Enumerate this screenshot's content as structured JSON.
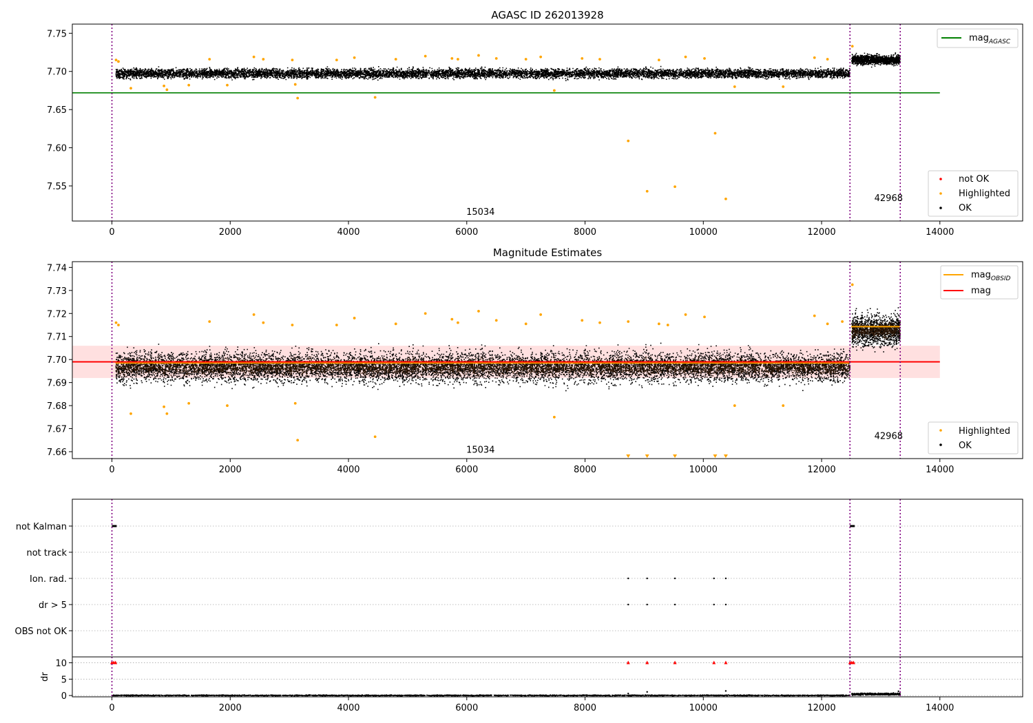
{
  "chart_data": [
    {
      "type": "scatter",
      "title": "AGASC ID 262013928",
      "xlabel": "",
      "ylabel": "",
      "xlim": [
        -670,
        15400
      ],
      "ylim": [
        7.504,
        7.762
      ],
      "xticks": [
        0,
        2000,
        4000,
        6000,
        8000,
        10000,
        12000,
        14000
      ],
      "xtick_labels": [
        "0",
        "2000",
        "4000",
        "6000",
        "8000",
        "10000",
        "12000",
        "14000"
      ],
      "yticks": [
        7.55,
        7.6,
        7.65,
        7.7,
        7.75
      ],
      "ytick_labels": [
        "7.55",
        "7.60",
        "7.65",
        "7.70",
        "7.75"
      ],
      "obsid_boundaries": [
        0,
        12480,
        13330
      ],
      "obsid_labels": [
        {
          "x": 6000,
          "y": 7.512,
          "text": "15034"
        },
        {
          "x": 12900,
          "y": 7.53,
          "text": "42968"
        }
      ],
      "ok_bands": [
        {
          "name": "OK",
          "x_start": 60,
          "x_end": 12470,
          "y_center": 7.698,
          "y_spread": 0.008
        },
        {
          "name": "OK",
          "x_start": 12500,
          "x_end": 13320,
          "y_center": 7.716,
          "y_spread": 0.008
        }
      ],
      "highlighted_points": [
        [
          70,
          7.715
        ],
        [
          110,
          7.713
        ],
        [
          320,
          7.678
        ],
        [
          880,
          7.681
        ],
        [
          930,
          7.676
        ],
        [
          1300,
          7.682
        ],
        [
          1650,
          7.716
        ],
        [
          1950,
          7.682
        ],
        [
          2400,
          7.719
        ],
        [
          2560,
          7.716
        ],
        [
          3050,
          7.715
        ],
        [
          3100,
          7.683
        ],
        [
          3140,
          7.665
        ],
        [
          3800,
          7.715
        ],
        [
          4100,
          7.718
        ],
        [
          4450,
          7.666
        ],
        [
          4800,
          7.716
        ],
        [
          5300,
          7.72
        ],
        [
          5750,
          7.717
        ],
        [
          5850,
          7.716
        ],
        [
          6200,
          7.721
        ],
        [
          6500,
          7.717
        ],
        [
          7000,
          7.716
        ],
        [
          7250,
          7.719
        ],
        [
          7480,
          7.675
        ],
        [
          7950,
          7.717
        ],
        [
          8250,
          7.716
        ],
        [
          8730,
          7.609
        ],
        [
          9050,
          7.543
        ],
        [
          9250,
          7.715
        ],
        [
          9520,
          7.549
        ],
        [
          9700,
          7.719
        ],
        [
          10020,
          7.717
        ],
        [
          10200,
          7.619
        ],
        [
          10380,
          7.533
        ],
        [
          10530,
          7.68
        ],
        [
          11350,
          7.68
        ],
        [
          11880,
          7.718
        ],
        [
          12100,
          7.716
        ],
        [
          12520,
          7.733
        ]
      ],
      "not_ok_points": [],
      "lines": [
        {
          "name": "mag_AGASC",
          "color": "#008000",
          "x": [
            -670,
            14000
          ],
          "y": [
            7.672,
            7.672
          ]
        }
      ],
      "legends": [
        {
          "placement": "top-right",
          "entries": [
            {
              "label_main": "mag",
              "label_sub": "AGASC",
              "kind": "line",
              "color": "#008000"
            }
          ]
        },
        {
          "placement": "lower-right",
          "entries": [
            {
              "label": "not OK",
              "kind": "dot",
              "color": "#ff0000"
            },
            {
              "label": "Highlighted",
              "kind": "dot",
              "color": "#ffa500"
            },
            {
              "label": "OK",
              "kind": "dot",
              "color": "#000000"
            }
          ]
        }
      ]
    },
    {
      "type": "scatter",
      "title": "Magnitude Estimates",
      "xlabel": "",
      "ylabel": "",
      "xlim": [
        -670,
        15400
      ],
      "ylim": [
        7.657,
        7.7425
      ],
      "xticks": [
        0,
        2000,
        4000,
        6000,
        8000,
        10000,
        12000,
        14000
      ],
      "xtick_labels": [
        "0",
        "2000",
        "4000",
        "6000",
        "8000",
        "10000",
        "12000",
        "14000"
      ],
      "yticks": [
        7.66,
        7.67,
        7.68,
        7.69,
        7.7,
        7.71,
        7.72,
        7.73,
        7.74
      ],
      "ytick_labels": [
        "7.66",
        "7.67",
        "7.68",
        "7.69",
        "7.70",
        "7.71",
        "7.72",
        "7.73",
        "7.74"
      ],
      "obsid_boundaries": [
        0,
        12480,
        13330
      ],
      "obsid_labels": [
        {
          "x": 6000,
          "y": 7.6595,
          "text": "15034"
        },
        {
          "x": 12900,
          "y": 7.6655,
          "text": "42968"
        }
      ],
      "ok_bands": [
        {
          "name": "OK",
          "x_start": 60,
          "x_end": 12470,
          "y_center": 7.697,
          "y_spread": 0.009
        },
        {
          "name": "OK",
          "x_start": 12500,
          "x_end": 13320,
          "y_center": 7.713,
          "y_spread": 0.009
        }
      ],
      "dense_core_color": "#2a1505",
      "mag_band": {
        "y_low": 7.692,
        "y_high": 7.706,
        "x_start": -670,
        "x_end": 14000,
        "color": "#ff0000",
        "opacity": 0.12
      },
      "highlighted_points": [
        [
          70,
          7.716
        ],
        [
          110,
          7.715
        ],
        [
          320,
          7.6765
        ],
        [
          880,
          7.6795
        ],
        [
          930,
          7.6765
        ],
        [
          1300,
          7.681
        ],
        [
          1650,
          7.7165
        ],
        [
          1950,
          7.68
        ],
        [
          2400,
          7.7195
        ],
        [
          2560,
          7.716
        ],
        [
          3050,
          7.715
        ],
        [
          3100,
          7.681
        ],
        [
          3140,
          7.665
        ],
        [
          3800,
          7.715
        ],
        [
          4100,
          7.718
        ],
        [
          4450,
          7.6665
        ],
        [
          4800,
          7.7155
        ],
        [
          5300,
          7.72
        ],
        [
          5750,
          7.7175
        ],
        [
          5850,
          7.716
        ],
        [
          6200,
          7.721
        ],
        [
          6500,
          7.717
        ],
        [
          7000,
          7.7155
        ],
        [
          7250,
          7.7195
        ],
        [
          7480,
          7.675
        ],
        [
          7950,
          7.717
        ],
        [
          8250,
          7.716
        ],
        [
          8730,
          7.7165
        ],
        [
          9250,
          7.7155
        ],
        [
          9400,
          7.715
        ],
        [
          9700,
          7.7195
        ],
        [
          10020,
          7.7185
        ],
        [
          10530,
          7.68
        ],
        [
          11350,
          7.68
        ],
        [
          11880,
          7.719
        ],
        [
          12100,
          7.7155
        ],
        [
          12350,
          7.7165
        ],
        [
          12520,
          7.7325
        ]
      ],
      "offscale_markers": [
        8730,
        9050,
        9520,
        10200,
        10380
      ],
      "lines": [
        {
          "name": "mag_OBSID",
          "color": "#ffa500",
          "segments": [
            {
              "x": [
                60,
                12470
              ],
              "y": [
                7.6985,
                7.6985
              ]
            },
            {
              "x": [
                12500,
                13320
              ],
              "y": [
                7.7143,
                7.7143
              ]
            }
          ]
        },
        {
          "name": "mag",
          "color": "#ff0000",
          "segments": [
            {
              "x": [
                -670,
                14000
              ],
              "y": [
                7.699,
                7.699
              ]
            }
          ]
        }
      ],
      "legends": [
        {
          "placement": "top-right",
          "entries": [
            {
              "label_main": "mag",
              "label_sub": "OBSID",
              "kind": "line",
              "color": "#ffa500"
            },
            {
              "label": "mag",
              "kind": "line",
              "color": "#ff0000"
            }
          ]
        },
        {
          "placement": "lower-right",
          "entries": [
            {
              "label": "Highlighted",
              "kind": "dot",
              "color": "#ffa500"
            },
            {
              "label": "OK",
              "kind": "dot",
              "color": "#000000"
            }
          ]
        }
      ]
    },
    {
      "type": "scatter",
      "title": "",
      "xlabel": "",
      "ylabel": "",
      "xlim": [
        -670,
        15400
      ],
      "obsid_boundaries": [
        0,
        12480,
        13330
      ],
      "categories": [
        "not Kalman",
        "not track",
        "Ion. rad.",
        "dr > 5",
        "OBS not OK"
      ],
      "flag_segments": [
        {
          "category": "not Kalman",
          "x_start": 0,
          "x_end": 80
        },
        {
          "category": "not Kalman",
          "x_start": 12480,
          "x_end": 12560
        }
      ],
      "flag_points": [
        {
          "category": "Ion. rad.",
          "x": [
            8730,
            9050,
            9520,
            10180,
            10380
          ]
        },
        {
          "category": "dr > 5",
          "x": [
            8730,
            9050,
            9520,
            10180,
            10380
          ]
        }
      ]
    },
    {
      "type": "scatter",
      "title": "",
      "xlabel": "",
      "ylabel": "dr",
      "xlim": [
        -670,
        15400
      ],
      "ylim": [
        -0.4,
        11.8
      ],
      "xticks": [
        0,
        2000,
        4000,
        6000,
        8000,
        10000,
        12000,
        14000
      ],
      "xtick_labels": [
        "0",
        "2000",
        "4000",
        "6000",
        "8000",
        "10000",
        "12000",
        "14000"
      ],
      "yticks": [
        0,
        5,
        10
      ],
      "ytick_labels": [
        "0",
        "5",
        "10"
      ],
      "obsid_boundaries": [
        0,
        12480,
        13330
      ],
      "ok_bands": [
        {
          "name": "OK",
          "x_start": 0,
          "x_end": 12470,
          "y_center": 0.2,
          "y_spread": 0.2
        },
        {
          "name": "OK",
          "x_start": 12500,
          "x_end": 13320,
          "y_center": 0.6,
          "y_spread": 0.4
        }
      ],
      "outliers": [
        [
          9050,
          1.1
        ],
        [
          10380,
          1.4
        ],
        [
          13300,
          1.3
        ],
        [
          8730,
          0.6
        ]
      ],
      "capped_markers": [
        0,
        30,
        60,
        8730,
        9050,
        9520,
        10180,
        10380,
        12480,
        12510,
        12540
      ]
    }
  ]
}
